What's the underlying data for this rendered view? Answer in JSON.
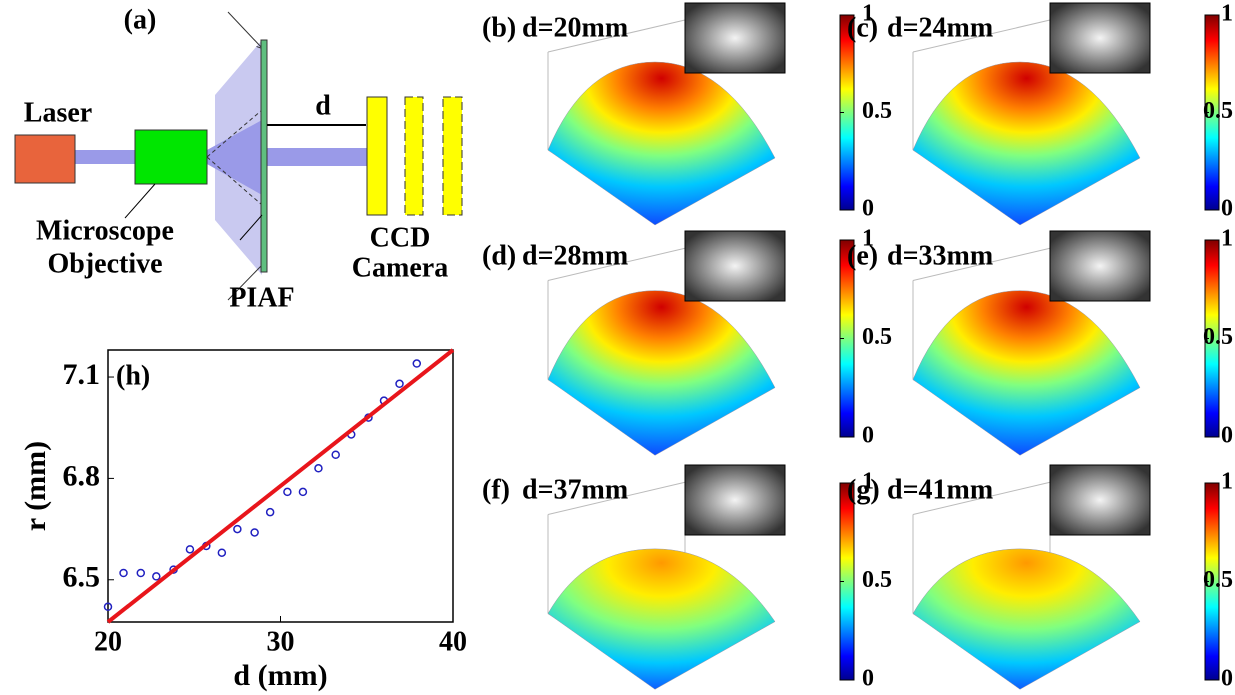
{
  "diagram": {
    "label": "(a)",
    "laser": "Laser",
    "objective": [
      "Microscope",
      "Objective"
    ],
    "distance": "d",
    "filter": "PIAF",
    "camera": [
      "CCD",
      "Camera"
    ]
  },
  "surface_panels": [
    {
      "label": "(b)",
      "title": "d=20mm"
    },
    {
      "label": "(c)",
      "title": "d=24mm"
    },
    {
      "label": "(d)",
      "title": "d=28mm"
    },
    {
      "label": "(e)",
      "title": "d=33mm"
    },
    {
      "label": "(f)",
      "title": "d=37mm"
    },
    {
      "label": "(g)",
      "title": "d=41mm"
    }
  ],
  "colorbar_ticks": [
    0,
    0.5,
    1
  ],
  "chart_data": {
    "type": "scatter",
    "label": "(h)",
    "x_label": "d (mm)",
    "y_label": "r (mm)",
    "xlim": [
      20,
      40
    ],
    "ylim": [
      6.375,
      7.18
    ],
    "xticks": [
      20,
      30,
      40
    ],
    "yticks": [
      6.5,
      6.8,
      7.1
    ],
    "series": [
      {
        "type": "scatter",
        "color": "#2020c0",
        "x": [
          20,
          20.9,
          21.9,
          22.8,
          23.8,
          24.75,
          25.7,
          26.6,
          27.5,
          28.5,
          29.4,
          30.4,
          31.3,
          32.2,
          33.2,
          34.1,
          35.1,
          36.0,
          36.9,
          37.9
        ],
        "values": [
          6.42,
          6.52,
          6.52,
          6.51,
          6.53,
          6.59,
          6.6,
          6.58,
          6.65,
          6.64,
          6.7,
          6.76,
          6.76,
          6.83,
          6.87,
          6.93,
          6.98,
          7.03,
          7.08,
          7.14
        ]
      },
      {
        "type": "line",
        "color": "#e8151b",
        "x": [
          20,
          40
        ],
        "values": [
          6.375,
          7.18
        ]
      }
    ]
  }
}
